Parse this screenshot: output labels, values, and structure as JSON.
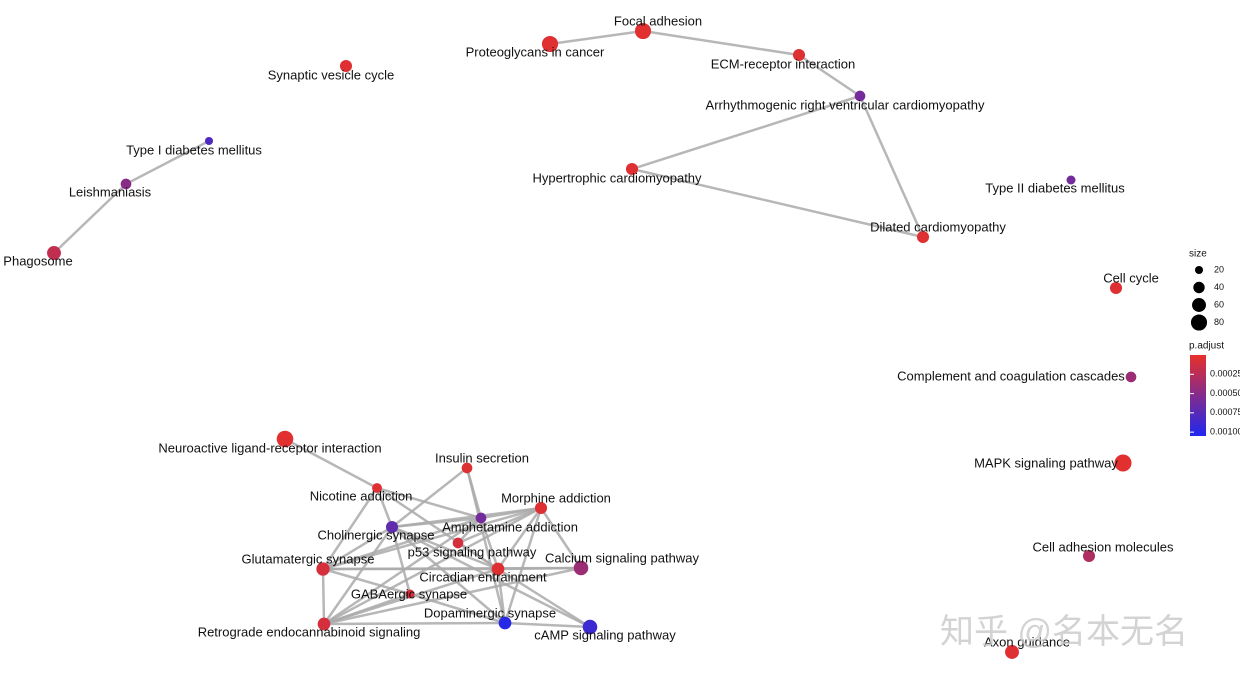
{
  "nodes": [
    {
      "label": "Focal adhesion",
      "size": 80,
      "p_adjust": 3e-05
    },
    {
      "label": "Proteoglycans in cancer",
      "size": 80,
      "p_adjust": 4e-05
    },
    {
      "label": "ECM-receptor interaction",
      "size": 45,
      "p_adjust": 5e-05
    },
    {
      "label": "Arrhythmogenic right ventricular cardiomyopathy",
      "size": 35,
      "p_adjust": 0.0006
    },
    {
      "label": "Hypertrophic cardiomyopathy",
      "size": 45,
      "p_adjust": 5e-05
    },
    {
      "label": "Dilated cardiomyopathy",
      "size": 45,
      "p_adjust": 5e-05
    },
    {
      "label": "Synaptic vesicle cycle",
      "size": 45,
      "p_adjust": 5e-05
    },
    {
      "label": "Type I diabetes mellitus",
      "size": 20,
      "p_adjust": 0.0008
    },
    {
      "label": "Leishmaniasis",
      "size": 35,
      "p_adjust": 0.0005
    },
    {
      "label": "Phagosome",
      "size": 60,
      "p_adjust": 0.0002
    },
    {
      "label": "Type II diabetes mellitus",
      "size": 25,
      "p_adjust": 0.0006
    },
    {
      "label": "Cell cycle",
      "size": 45,
      "p_adjust": 5e-05
    },
    {
      "label": "Complement and coagulation cascades",
      "size": 35,
      "p_adjust": 0.0004
    },
    {
      "label": "MAPK signaling pathway",
      "size": 90,
      "p_adjust": 3e-05
    },
    {
      "label": "Cell adhesion molecules",
      "size": 45,
      "p_adjust": 0.0003
    },
    {
      "label": "Axon guidance",
      "size": 60,
      "p_adjust": 5e-05
    },
    {
      "label": "Neuroactive ligand-receptor interaction",
      "size": 85,
      "p_adjust": 3e-05
    },
    {
      "label": "Insulin secretion",
      "size": 35,
      "p_adjust": 5e-05
    },
    {
      "label": "Nicotine addiction",
      "size": 30,
      "p_adjust": 5e-05
    },
    {
      "label": "Morphine addiction",
      "size": 45,
      "p_adjust": 5e-05
    },
    {
      "label": "Cholinergic synapse",
      "size": 45,
      "p_adjust": 0.0007
    },
    {
      "label": "Amphetamine addiction",
      "size": 35,
      "p_adjust": 0.0006
    },
    {
      "label": "p53 signaling pathway",
      "size": 35,
      "p_adjust": 0.0001
    },
    {
      "label": "Glutamatergic synapse",
      "size": 55,
      "p_adjust": 0.0001
    },
    {
      "label": "Calcium signaling pathway",
      "size": 65,
      "p_adjust": 0.0004
    },
    {
      "label": "Circadian entrainment",
      "size": 50,
      "p_adjust": 5e-05
    },
    {
      "label": "GABAergic synapse",
      "size": 25,
      "p_adjust": 0.0001
    },
    {
      "label": "Dopaminergic synapse",
      "size": 50,
      "p_adjust": 0.001
    },
    {
      "label": "cAMP signaling pathway",
      "size": 65,
      "p_adjust": 0.0009
    },
    {
      "label": "Retrograde endocannabinoid signaling",
      "size": 50,
      "p_adjust": 0.0001
    }
  ],
  "edges": [
    [
      0,
      1
    ],
    [
      0,
      2
    ],
    [
      2,
      3
    ],
    [
      3,
      4
    ],
    [
      3,
      5
    ],
    [
      4,
      5
    ],
    [
      7,
      8
    ],
    [
      8,
      9
    ],
    [
      16,
      18
    ],
    [
      18,
      20
    ],
    [
      18,
      23
    ],
    [
      18,
      21
    ],
    [
      18,
      25
    ],
    [
      17,
      20
    ],
    [
      17,
      21
    ],
    [
      17,
      27
    ],
    [
      19,
      20
    ],
    [
      19,
      21
    ],
    [
      19,
      22
    ],
    [
      19,
      23
    ],
    [
      19,
      25
    ],
    [
      19,
      29
    ],
    [
      19,
      24
    ],
    [
      19,
      27
    ],
    [
      20,
      21
    ],
    [
      20,
      23
    ],
    [
      20,
      25
    ],
    [
      20,
      29
    ],
    [
      20,
      27
    ],
    [
      20,
      28
    ],
    [
      21,
      22
    ],
    [
      21,
      25
    ],
    [
      21,
      29
    ],
    [
      21,
      23
    ],
    [
      22,
      25
    ],
    [
      23,
      25
    ],
    [
      23,
      29
    ],
    [
      23,
      24
    ],
    [
      23,
      26
    ],
    [
      25,
      29
    ],
    [
      25,
      27
    ],
    [
      25,
      24
    ],
    [
      25,
      28
    ],
    [
      26,
      27
    ],
    [
      26,
      29
    ],
    [
      27,
      29
    ],
    [
      27,
      28
    ],
    [
      24,
      29
    ],
    [
      20,
      26
    ]
  ],
  "legend": {
    "size_title": "size",
    "size_ticks": [
      20,
      40,
      60,
      80
    ],
    "color_title": "p.adjust",
    "color_range": [
      0,
      0.00105
    ],
    "colors": [
      "#e8302a",
      "#1e28f0"
    ],
    "color_ticks": [
      {
        "value": 0.00025,
        "label": "0.00025"
      },
      {
        "value": 0.0005,
        "label": "0.00050"
      },
      {
        "value": 0.00075,
        "label": "0.00075"
      },
      {
        "value": 0.001,
        "label": "0.00100"
      }
    ]
  },
  "watermark": "知乎 @名本无名"
}
